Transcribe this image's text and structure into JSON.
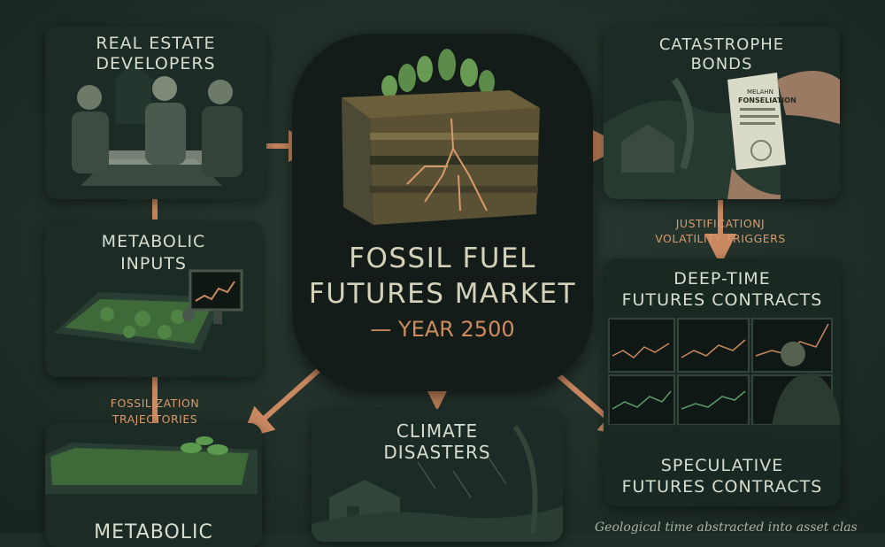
{
  "center": {
    "title_line1": "FOSSIL FUEL",
    "title_line2": "FUTURES MARKET",
    "subtitle": "— YEAR 2500"
  },
  "panels": {
    "real_estate": {
      "line1": "REAL ESTATE",
      "line2": "DEVELOPERS"
    },
    "metabolic": {
      "line1": "METABOLIC",
      "line2": "INPUTS"
    },
    "bottom_left": {
      "line1": "METABOLIC"
    },
    "climate": {
      "line1": "CLIMATE",
      "line2": "DISASTERS"
    },
    "catastrophe": {
      "line1": "CATASTROPHE",
      "line2": "BONDS"
    },
    "deep_time": {
      "line1": "DEEP-TIME",
      "line2": "FUTURES CONTRACTS"
    },
    "speculative": {
      "line1": "SPECULATIVE",
      "line2": "FUTURES CONTRACTS"
    }
  },
  "document_text": {
    "line1": "MELAHN",
    "line2": "FONSELIATION"
  },
  "labels": {
    "fossilization_line1": "FOSSILIZATION",
    "fossilization_line2": "TRAJECTORIES",
    "justification_line1": "JUSTIFICATIONJ",
    "justification_line2": "VOLATILITY TRIGGERS"
  },
  "caption": "Geological time abstracted into asset clas",
  "colors": {
    "background": "#1f2e29",
    "panel": "#172520",
    "arrow": "#c98860",
    "title_text": "#d4d2b8",
    "accent_orange": "#cf8b5f"
  }
}
